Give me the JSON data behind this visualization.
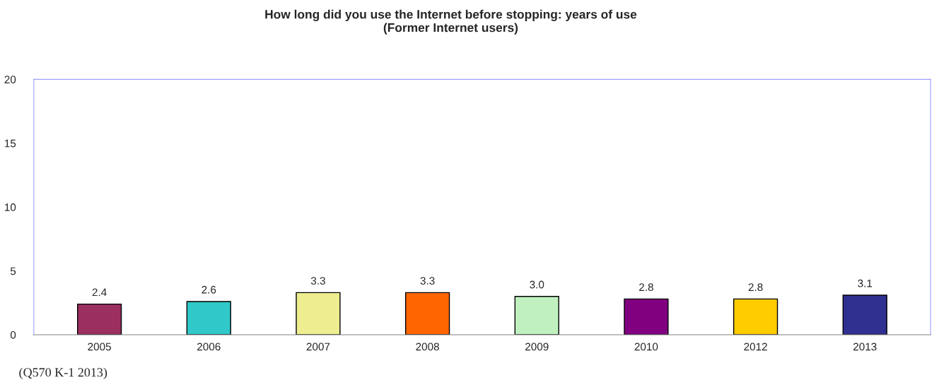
{
  "chart_data": {
    "type": "bar",
    "title": "How long did you use the Internet before stopping: years of use\n(Former Internet users)",
    "categories": [
      "2005",
      "2006",
      "2007",
      "2008",
      "2009",
      "2010",
      "2012",
      "2013"
    ],
    "values": [
      2.4,
      2.6,
      3.3,
      3.3,
      3.0,
      2.8,
      2.8,
      3.1
    ],
    "value_labels": [
      "2.4",
      "2.6",
      "3.3",
      "3.3",
      "3.0",
      "2.8",
      "2.8",
      "3.1"
    ],
    "colors": [
      "#9b3060",
      "#30c8c8",
      "#eeee90",
      "#ff6600",
      "#c0f0c0",
      "#800080",
      "#ffcc00",
      "#303090"
    ],
    "ylim": [
      0,
      20
    ],
    "yticks": [
      0,
      5,
      10,
      15,
      20
    ],
    "grid": false,
    "annotations": [
      "(Q570 K-1 2013)"
    ]
  }
}
